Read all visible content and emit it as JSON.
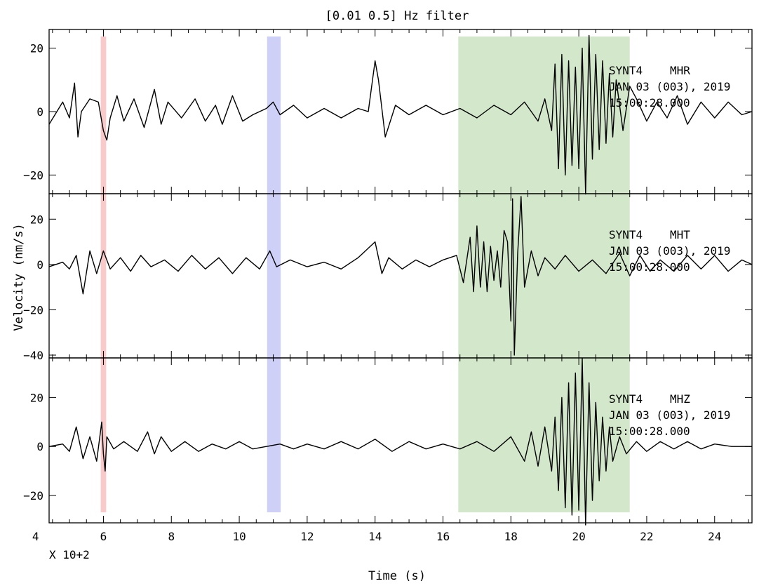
{
  "chart_data": {
    "type": "line",
    "title": "[0.01  0.5] Hz filter",
    "xlabel": "Time (s)",
    "ylabel": "Velocity (nm/s)",
    "x_multiplier": "X 10+2",
    "xlim": [
      4.4,
      25.1
    ],
    "x_ticks": [
      4,
      6,
      8,
      10,
      12,
      14,
      16,
      18,
      20,
      22,
      24
    ],
    "x_tick_labels": [
      "4",
      "6",
      "8",
      "10",
      "12",
      "14",
      "16",
      "18",
      "20",
      "22",
      "24"
    ],
    "highlights": [
      {
        "x0": 5.92,
        "x1": 6.08,
        "color": "#f4a7a7"
      },
      {
        "x0": 10.82,
        "x1": 11.22,
        "color": "#aeb0f4"
      },
      {
        "x0": 16.45,
        "x1": 21.5,
        "color": "#b5d8a8"
      }
    ],
    "panels": [
      {
        "station": "SYNT4",
        "channel": "MHR",
        "date": "JAN 03 (003), 2019",
        "time": "15:00:28.000",
        "ylim": [
          -25,
          25
        ],
        "y_ticks": [
          -20,
          0,
          20
        ],
        "y_tick_labels": [
          "−20",
          "0",
          "20"
        ],
        "series": [
          {
            "x": [
              4.4,
              4.8,
              5.0,
              5.15,
              5.25,
              5.35,
              5.6,
              5.85,
              6.0,
              6.1,
              6.2,
              6.4,
              6.6,
              6.9,
              7.2,
              7.5,
              7.7,
              7.9,
              8.3,
              8.7,
              9.0,
              9.3,
              9.5,
              9.8,
              10.1,
              10.4,
              10.8,
              11.0,
              11.2,
              11.6,
              12.0,
              12.5,
              13.0,
              13.5,
              13.8,
              14.0,
              14.1,
              14.3,
              14.6,
              15.0,
              15.5,
              16.0,
              16.5,
              17.0,
              17.5,
              18.0,
              18.4,
              18.8,
              19.0,
              19.2,
              19.3,
              19.4,
              19.5,
              19.6,
              19.7,
              19.8,
              19.9,
              20.0,
              20.1,
              20.2,
              20.3,
              20.4,
              20.5,
              20.6,
              20.7,
              20.8,
              20.9,
              21.0,
              21.1,
              21.3,
              21.5,
              21.7,
              22.0,
              22.3,
              22.6,
              22.9,
              23.2,
              23.6,
              24.0,
              24.4,
              24.8,
              25.1
            ],
            "y": [
              -4,
              3,
              -2,
              9,
              -8,
              0,
              4,
              3,
              -6,
              -9,
              -2,
              5,
              -3,
              4,
              -5,
              7,
              -4,
              3,
              -2,
              4,
              -3,
              2,
              -4,
              5,
              -3,
              -1,
              1,
              3,
              -1,
              2,
              -2,
              1,
              -2,
              1,
              0,
              16,
              10,
              -8,
              2,
              -1,
              2,
              -1,
              1,
              -2,
              2,
              -1,
              3,
              -3,
              4,
              -6,
              15,
              -18,
              18,
              -20,
              16,
              -17,
              14,
              -18,
              20,
              -26,
              24,
              -15,
              18,
              -12,
              16,
              -10,
              12,
              -8,
              10,
              -6,
              8,
              4,
              -3,
              3,
              -2,
              5,
              -4,
              3,
              -2,
              3,
              -1,
              0
            ]
          }
        ]
      },
      {
        "station": "SYNT4",
        "channel": "MHT",
        "date": "JAN 03 (003), 2019",
        "time": "15:00:28.000",
        "ylim": [
          -40,
          30
        ],
        "y_ticks": [
          -40,
          -20,
          0,
          20
        ],
        "y_tick_labels": [
          "−40",
          "−20",
          "0",
          "20"
        ],
        "series": [
          {
            "x": [
              4.4,
              4.8,
              5.0,
              5.2,
              5.4,
              5.6,
              5.8,
              6.0,
              6.2,
              6.5,
              6.8,
              7.1,
              7.4,
              7.8,
              8.2,
              8.6,
              9.0,
              9.4,
              9.8,
              10.2,
              10.6,
              10.9,
              11.1,
              11.5,
              12.0,
              12.5,
              13.0,
              13.5,
              14.0,
              14.2,
              14.4,
              14.8,
              15.2,
              15.6,
              16.0,
              16.4,
              16.6,
              16.8,
              16.9,
              17.0,
              17.1,
              17.2,
              17.3,
              17.4,
              17.5,
              17.6,
              17.7,
              17.8,
              17.9,
              18.0,
              18.05,
              18.1,
              18.2,
              18.3,
              18.4,
              18.6,
              18.8,
              19.0,
              19.3,
              19.6,
              20.0,
              20.4,
              20.8,
              21.2,
              21.5,
              21.8,
              22.1,
              22.4,
              22.8,
              23.2,
              23.6,
              24.0,
              24.4,
              24.8,
              25.1
            ],
            "y": [
              -1,
              1,
              -2,
              4,
              -13,
              6,
              -4,
              6,
              -2,
              3,
              -3,
              4,
              -1,
              2,
              -3,
              4,
              -2,
              3,
              -4,
              3,
              -2,
              6,
              -1,
              2,
              -1,
              1,
              -2,
              3,
              10,
              -4,
              3,
              -2,
              2,
              -1,
              2,
              4,
              -8,
              12,
              -12,
              17,
              -10,
              10,
              -12,
              8,
              -7,
              6,
              -10,
              15,
              10,
              -25,
              29,
              -40,
              5,
              30,
              -10,
              6,
              -5,
              3,
              -2,
              4,
              -3,
              2,
              -4,
              5,
              -5,
              4,
              -3,
              2,
              -3,
              4,
              -2,
              4,
              -3,
              2,
              0
            ]
          }
        ]
      },
      {
        "station": "SYNT4",
        "channel": "MHZ",
        "date": "JAN 03 (003), 2019",
        "time": "15:00:28.000",
        "ylim": [
          -30,
          35
        ],
        "y_ticks": [
          -20,
          0,
          20
        ],
        "y_tick_labels": [
          "−20",
          "0",
          "20"
        ],
        "series": [
          {
            "x": [
              4.4,
              4.8,
              5.0,
              5.2,
              5.4,
              5.6,
              5.8,
              5.95,
              6.0,
              6.05,
              6.1,
              6.3,
              6.6,
              7.0,
              7.3,
              7.5,
              7.7,
              8.0,
              8.4,
              8.8,
              9.2,
              9.6,
              10.0,
              10.4,
              10.8,
              11.2,
              11.6,
              12.0,
              12.5,
              13.0,
              13.5,
              14.0,
              14.5,
              15.0,
              15.5,
              16.0,
              16.5,
              17.0,
              17.5,
              18.0,
              18.4,
              18.6,
              18.8,
              19.0,
              19.2,
              19.3,
              19.4,
              19.5,
              19.6,
              19.7,
              19.8,
              19.9,
              20.0,
              20.1,
              20.2,
              20.3,
              20.4,
              20.5,
              20.6,
              20.7,
              20.8,
              20.9,
              21.0,
              21.2,
              21.4,
              21.7,
              22.0,
              22.4,
              22.8,
              23.2,
              23.6,
              24.0,
              24.5,
              25.1
            ],
            "y": [
              0,
              1,
              -2,
              8,
              -5,
              4,
              -6,
              10,
              -3,
              -10,
              4,
              -1,
              2,
              -2,
              6,
              -3,
              4,
              -2,
              2,
              -2,
              1,
              -1,
              2,
              -1,
              0,
              1,
              -1,
              1,
              -1,
              2,
              -1,
              3,
              -2,
              2,
              -1,
              1,
              -1,
              2,
              -2,
              4,
              -6,
              6,
              -8,
              8,
              -10,
              12,
              -18,
              20,
              -25,
              26,
              -28,
              30,
              -26,
              36,
              -32,
              26,
              -22,
              18,
              -14,
              12,
              -10,
              8,
              -6,
              4,
              -3,
              2,
              -2,
              2,
              -1,
              2,
              -1,
              1,
              0,
              0
            ]
          }
        ]
      }
    ]
  }
}
